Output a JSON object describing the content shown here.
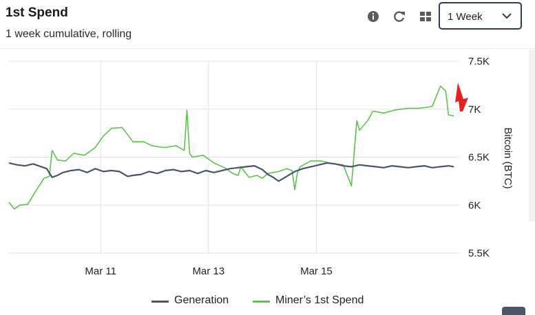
{
  "header": {
    "title": "1st Spend",
    "subtitle": "1 week cumulative, rolling"
  },
  "toolbar": {
    "info_icon": "info-icon",
    "refresh_icon": "refresh-icon",
    "grid_icon": "grid-icon",
    "range_value": "1 Week"
  },
  "colors": {
    "generation": "#4a5466",
    "miners_first_spend": "#5bc44a",
    "grid": "#e3e3e3"
  },
  "chart_data": {
    "type": "line",
    "title": "",
    "xlabel": "",
    "ylabel": "Bitcoin (BTC)",
    "ylim": [
      5500,
      7500
    ],
    "yticks": [
      5500,
      6000,
      6500,
      7000,
      7500
    ],
    "ytick_labels": [
      "5.5K",
      "6K",
      "6.5K",
      "7K",
      "7.5K"
    ],
    "xlim": [
      9.3,
      17.65
    ],
    "xticks": [
      11,
      13,
      15
    ],
    "xtick_labels": [
      "Mar 11",
      "Mar 13",
      "Mar 15"
    ],
    "grid": true,
    "legend": "bottom",
    "series": [
      {
        "name": "Generation",
        "x": [
          9.3,
          9.45,
          9.6,
          9.75,
          9.9,
          10.0,
          10.1,
          10.2,
          10.3,
          10.45,
          10.6,
          10.75,
          10.9,
          11.05,
          11.2,
          11.35,
          11.5,
          11.6,
          11.75,
          11.9,
          12.05,
          12.2,
          12.35,
          12.5,
          12.65,
          12.8,
          12.95,
          13.1,
          13.25,
          13.4,
          13.55,
          13.7,
          13.85,
          14.0,
          14.1,
          14.2,
          14.3,
          14.45,
          14.6,
          14.75,
          14.9,
          15.05,
          15.2,
          15.35,
          15.5,
          15.65,
          15.8,
          15.95,
          16.1,
          16.25,
          16.4,
          16.55,
          16.7,
          16.85,
          17.0,
          17.15,
          17.3,
          17.45,
          17.55
        ],
        "values": [
          6440,
          6420,
          6410,
          6430,
          6400,
          6380,
          6290,
          6310,
          6340,
          6360,
          6370,
          6340,
          6380,
          6350,
          6360,
          6350,
          6300,
          6310,
          6320,
          6350,
          6330,
          6360,
          6370,
          6350,
          6360,
          6330,
          6360,
          6340,
          6360,
          6380,
          6390,
          6400,
          6410,
          6370,
          6320,
          6290,
          6250,
          6300,
          6350,
          6380,
          6400,
          6420,
          6440,
          6430,
          6410,
          6400,
          6420,
          6410,
          6400,
          6390,
          6410,
          6400,
          6390,
          6400,
          6410,
          6390,
          6400,
          6410,
          6400
        ]
      },
      {
        "name": "Miner’s 1st Spend",
        "x": [
          9.3,
          9.4,
          9.5,
          9.65,
          9.8,
          9.95,
          10.05,
          10.1,
          10.2,
          10.35,
          10.5,
          10.7,
          10.9,
          11.05,
          11.2,
          11.4,
          11.6,
          11.8,
          11.95,
          12.05,
          12.2,
          12.4,
          12.55,
          12.6,
          12.65,
          12.7,
          12.9,
          13.1,
          13.3,
          13.45,
          13.55,
          13.6,
          13.75,
          13.9,
          14.0,
          14.1,
          14.3,
          14.45,
          14.55,
          14.6,
          14.65,
          14.7,
          14.9,
          15.1,
          15.3,
          15.5,
          15.65,
          15.75,
          15.8,
          15.95,
          16.05,
          16.25,
          16.45,
          16.7,
          16.9,
          17.05,
          17.15,
          17.3,
          17.4,
          17.45,
          17.55
        ],
        "values": [
          6030,
          5960,
          6000,
          6010,
          6150,
          6280,
          6300,
          6570,
          6470,
          6460,
          6540,
          6520,
          6600,
          6720,
          6800,
          6810,
          6660,
          6660,
          6620,
          6610,
          6600,
          6620,
          6570,
          6990,
          6540,
          6500,
          6520,
          6440,
          6390,
          6330,
          6310,
          6400,
          6290,
          6310,
          6280,
          6330,
          6350,
          6380,
          6360,
          6160,
          6340,
          6400,
          6460,
          6460,
          6430,
          6420,
          6200,
          6880,
          6780,
          6880,
          6980,
          6960,
          6990,
          7010,
          7010,
          7020,
          7030,
          7240,
          7190,
          6940,
          6930
        ]
      }
    ],
    "annotations": [
      "red-arrow"
    ]
  }
}
